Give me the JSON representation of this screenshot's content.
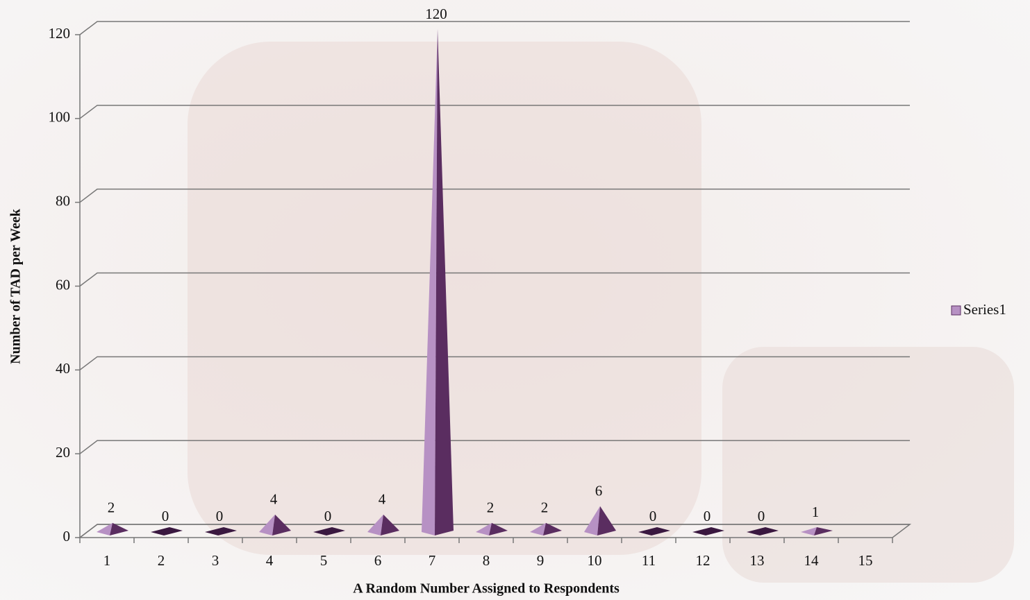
{
  "chart_data": {
    "type": "bar",
    "x_label": "A Random Number Assigned to Respondents",
    "y_label": "Number of TAD per Week",
    "categories": [
      "1",
      "2",
      "3",
      "4",
      "5",
      "6",
      "7",
      "8",
      "9",
      "10",
      "11",
      "12",
      "13",
      "14",
      "15"
    ],
    "series": [
      {
        "name": "Series1",
        "color": "#b791c4",
        "values": [
          2,
          0,
          0,
          4,
          0,
          4,
          120,
          2,
          2,
          6,
          0,
          0,
          0,
          1,
          null
        ]
      }
    ],
    "ylim": [
      0,
      120
    ],
    "yticks": [
      0,
      20,
      40,
      60,
      80,
      100,
      120
    ],
    "grid": true,
    "legend": "right"
  }
}
